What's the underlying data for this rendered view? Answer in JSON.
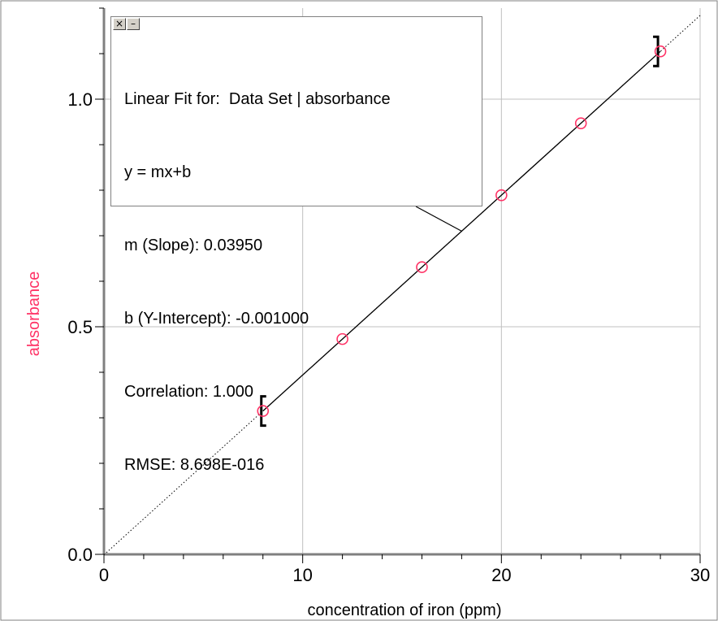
{
  "fit_panel": {
    "close_glyph": "×",
    "minimize_glyph": "–",
    "lines": [
      "Linear Fit for:  Data Set | absorbance",
      "y = mx+b",
      "m (Slope): 0.03950",
      "b (Y-Intercept): -0.001000",
      "Correlation: 1.000",
      "RMSE: 8.698E-016"
    ]
  },
  "chart_data": {
    "type": "scatter",
    "title": "",
    "xlabel": "concentration of iron  (ppm)",
    "ylabel": "absorbance",
    "xlim": [
      0,
      30
    ],
    "ylim": [
      0,
      1.2
    ],
    "x_ticks": [
      0,
      10,
      20,
      30
    ],
    "x_tick_labels": [
      "0",
      "10",
      "20",
      "30"
    ],
    "y_ticks": [
      0.0,
      0.5,
      1.0
    ],
    "y_tick_labels": [
      "0.0",
      "0.5",
      "1.0"
    ],
    "grid": true,
    "series": [
      {
        "x": [
          8,
          12,
          16,
          20,
          24,
          28
        ],
        "y": [
          0.315,
          0.473,
          0.631,
          0.789,
          0.947,
          1.105
        ],
        "marker": "open-circle",
        "color": "#ff3366"
      }
    ],
    "fit": {
      "slope": 0.0395,
      "intercept": -0.001,
      "range": [
        8,
        28
      ]
    },
    "colors": {
      "ylabel": "#ff3366",
      "xlabel": "#000000",
      "grid": "#c0c0c0",
      "axis": "#808080"
    }
  }
}
